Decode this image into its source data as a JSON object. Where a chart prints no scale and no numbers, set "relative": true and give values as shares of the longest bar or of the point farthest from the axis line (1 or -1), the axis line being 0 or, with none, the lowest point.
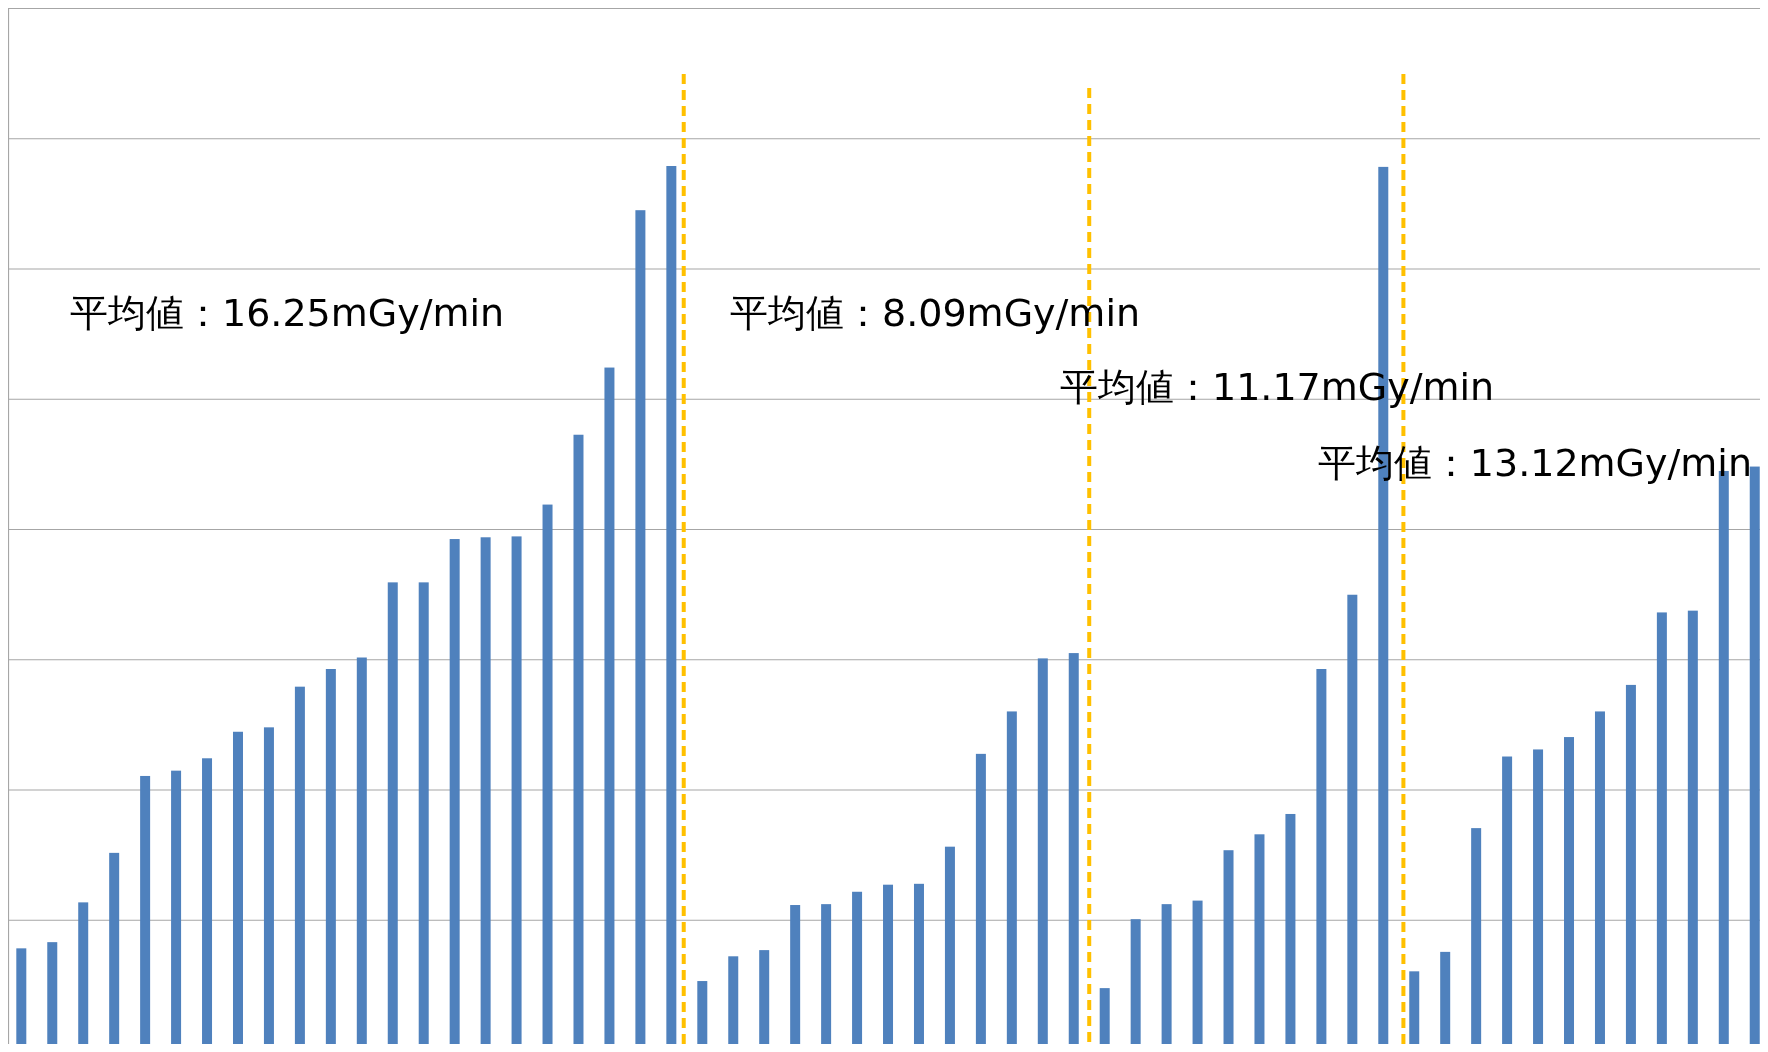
{
  "chart_data": {
    "type": "bar",
    "relative": true,
    "color": "#4f81bd",
    "categories": [
      null,
      null,
      null,
      null,
      null,
      null,
      null,
      null,
      null,
      null,
      null,
      null,
      null,
      null,
      null,
      null,
      null,
      null,
      null,
      null,
      null,
      null,
      null,
      null,
      null,
      null,
      null,
      null,
      null,
      null,
      null,
      null,
      null,
      null,
      null,
      null,
      null,
      null,
      null,
      null,
      null,
      null,
      null,
      null,
      null,
      null,
      null,
      null,
      null,
      null,
      null,
      null,
      null,
      null,
      null,
      null,
      null
    ],
    "values": [
      0.115,
      0.122,
      0.167,
      0.223,
      0.31,
      0.316,
      0.33,
      0.36,
      0.365,
      0.411,
      0.431,
      0.444,
      0.529,
      0.529,
      0.578,
      0.58,
      0.581,
      0.617,
      0.696,
      0.772,
      0.95,
      1,
      0.078,
      0.106,
      0.113,
      0.164,
      0.165,
      0.179,
      0.187,
      0.188,
      0.23,
      0.335,
      0.383,
      0.443,
      0.449,
      0.07,
      0.148,
      0.165,
      0.169,
      0.226,
      0.244,
      0.267,
      0.431,
      0.515,
      0.999,
      0.089,
      0.111,
      0.251,
      0.332,
      0.34,
      0.354,
      0.383,
      0.413,
      0.495,
      0.497,
      0.655,
      0.66
    ],
    "grid": "y",
    "annotations": [
      "平均値：16.25mGy/min",
      "平均値：8.09mGy/min",
      "平均値：11.17mGy/min",
      "平均値：13.12mGy/min"
    ]
  }
}
